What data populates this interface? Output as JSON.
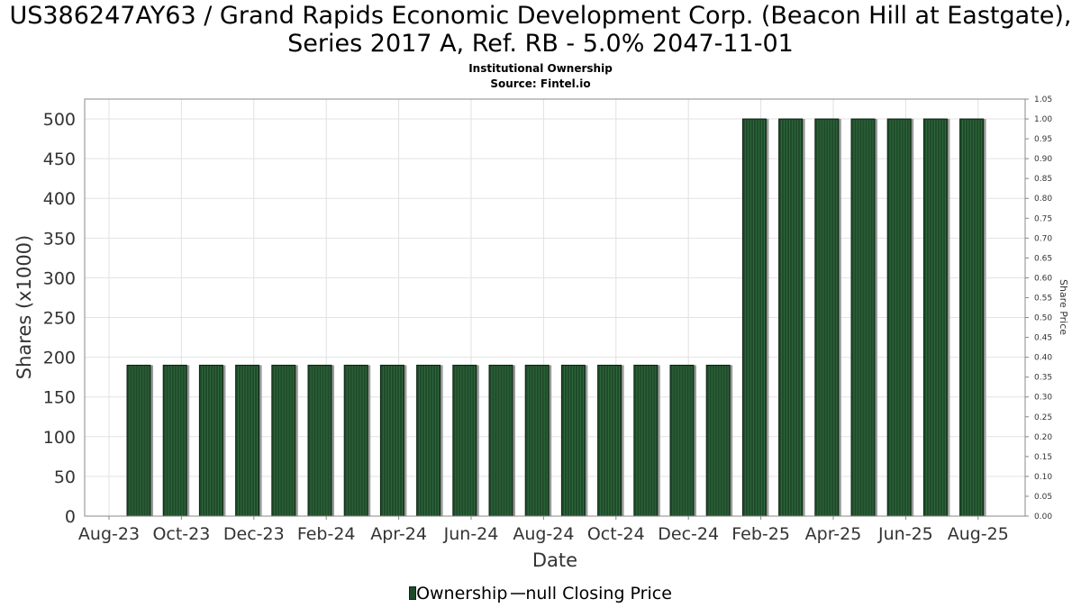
{
  "chart_data": {
    "type": "bar",
    "title": "US386247AY63 / Grand Rapids Economic Development Corp. (Beacon Hill at Eastgate), Series 2017 A, Ref. RB - 5.0% 2047-11-01",
    "subtitle": "Institutional Ownership",
    "source": "Source: Fintel.io",
    "xlabel": "Date",
    "ylabel": "Shares (x1000)",
    "y2label": "Share Price",
    "ylim": [
      0,
      525
    ],
    "y2lim": [
      0,
      1.05
    ],
    "yticks": [
      "0",
      "50",
      "100",
      "150",
      "200",
      "250",
      "300",
      "350",
      "400",
      "450",
      "500"
    ],
    "y2ticks": [
      "0.00",
      "0.05",
      "0.10",
      "0.15",
      "0.20",
      "0.25",
      "0.30",
      "0.35",
      "0.40",
      "0.45",
      "0.50",
      "0.55",
      "0.60",
      "0.65",
      "0.70",
      "0.75",
      "0.80",
      "0.85",
      "0.90",
      "0.95",
      "1.00",
      "1.05"
    ],
    "xticks": [
      "Aug-23",
      "Oct-23",
      "Dec-23",
      "Feb-24",
      "Apr-24",
      "Jun-24",
      "Aug-24",
      "Oct-24",
      "Dec-24",
      "Feb-25",
      "Apr-25",
      "Jun-25",
      "Aug-25"
    ],
    "grid": true,
    "legend_position": "bottom",
    "series": [
      {
        "name": "Ownership",
        "color": "#1f4a2a",
        "values": [
          190,
          190,
          190,
          190,
          190,
          190,
          190,
          190,
          190,
          190,
          190,
          190,
          190,
          190,
          190,
          190,
          190,
          500,
          500,
          500,
          500,
          500,
          500,
          500
        ]
      }
    ],
    "legend": [
      "Ownership",
      "null Closing Price"
    ]
  }
}
